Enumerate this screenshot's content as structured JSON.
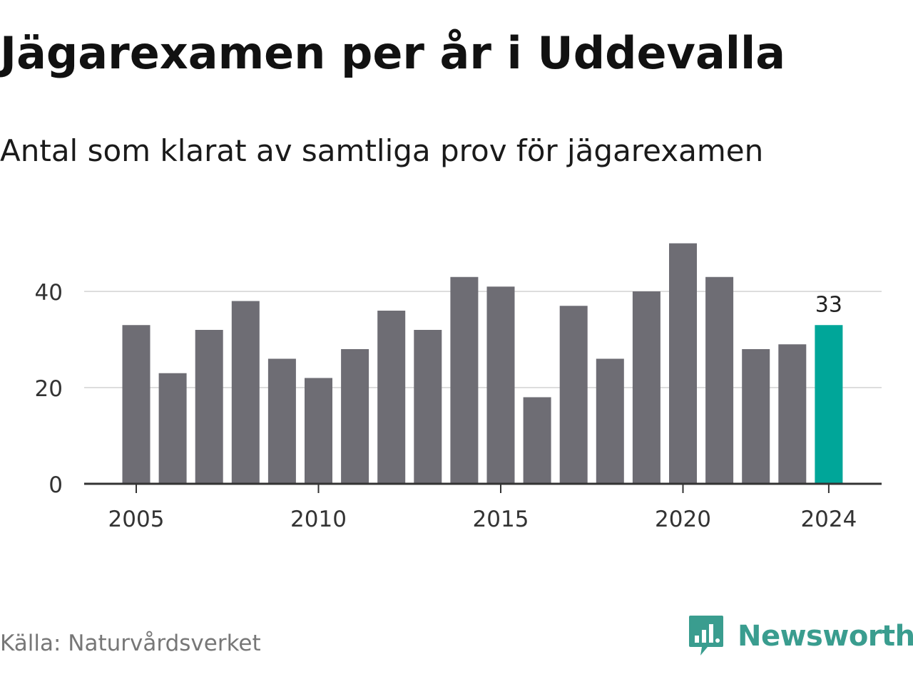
{
  "header": {
    "title": "Jägarexamen per år i Uddevalla",
    "subtitle": "Antal som klarat av samtliga prov för jägarexamen"
  },
  "footer": {
    "source": "Källa: Naturvårdsverket",
    "brand": "Newsworthy",
    "brand_icon": "newsworthy-logo-icon"
  },
  "colors": {
    "bar": "#6e6d74",
    "highlight": "#00a699",
    "grid": "#dddddd",
    "axis": "#333333",
    "brand": "#3a9d8f"
  },
  "chart_data": {
    "type": "bar",
    "x": [
      2005,
      2006,
      2007,
      2008,
      2009,
      2010,
      2011,
      2012,
      2013,
      2014,
      2015,
      2016,
      2017,
      2018,
      2019,
      2020,
      2021,
      2022,
      2023,
      2024
    ],
    "values": [
      33,
      23,
      32,
      38,
      26,
      22,
      28,
      36,
      32,
      43,
      41,
      18,
      37,
      26,
      40,
      50,
      43,
      28,
      29,
      33
    ],
    "highlight": [
      2024
    ],
    "data_labels": [
      {
        "x": 2024,
        "text": "33"
      }
    ],
    "x_ticks": [
      "2005",
      "2010",
      "2015",
      "2020",
      "2024"
    ],
    "y_ticks": [
      "0",
      "20",
      "40"
    ],
    "ylim": [
      0,
      50
    ],
    "grid": true,
    "legend": false
  }
}
